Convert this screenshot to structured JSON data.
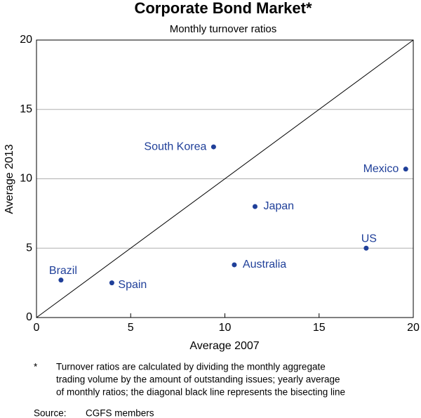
{
  "chart_data": {
    "type": "scatter",
    "title": "Corporate Bond Market*",
    "subtitle": "Monthly turnover ratios",
    "x_label": "Average 2007",
    "y_label": "Average 2013",
    "point_labels": [
      "South Korea",
      "Mexico",
      "Japan",
      "US",
      "Australia",
      "Brazil",
      "Spain"
    ],
    "x": [
      9.4,
      19.6,
      11.6,
      17.5,
      10.5,
      1.3,
      4.0
    ],
    "values": [
      12.3,
      10.7,
      8.0,
      5.0,
      3.8,
      2.7,
      2.5
    ],
    "color": "#1f3f99",
    "xlim": [
      0,
      20
    ],
    "xticks": [
      0,
      5,
      10,
      15,
      20
    ],
    "ylim": [
      0,
      20
    ],
    "yticks": [
      0,
      5,
      10,
      15,
      20
    ],
    "grid": true,
    "diagonal": true,
    "footnote_marker": "*",
    "footnote": [
      "Turnover ratios are calculated by dividing the monthly aggregate",
      "trading volume by the amount of outstanding issues; yearly average",
      "of monthly ratios; the diagonal black line represents the bisecting line"
    ],
    "source_label": "Source:",
    "source": "CGFS members"
  }
}
